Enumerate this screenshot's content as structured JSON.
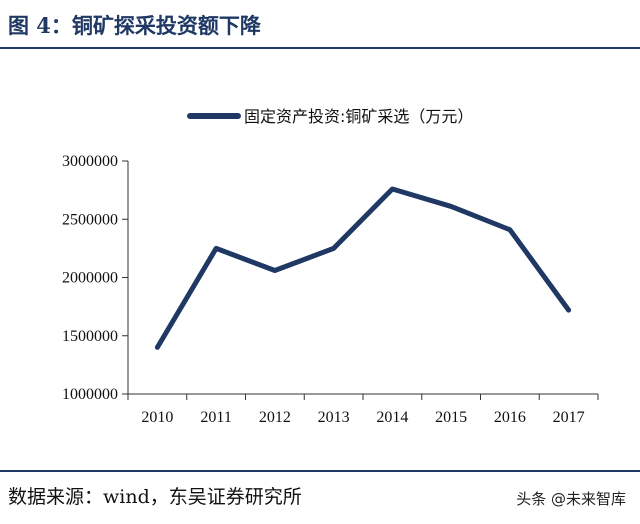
{
  "header": {
    "title": "图 4：铜矿探采投资额下降"
  },
  "footer": {
    "source": "数据来源：wind，东吴证券研究所",
    "watermark": "头条 @未来智库"
  },
  "chart_data": {
    "type": "line",
    "title": "",
    "xlabel": "",
    "ylabel": "",
    "categories": [
      "2010",
      "2011",
      "2012",
      "2013",
      "2014",
      "2015",
      "2016",
      "2017"
    ],
    "series": [
      {
        "name": "固定资产投资:铜矿采选（万元）",
        "values": [
          1400000,
          2250000,
          2060000,
          2250000,
          2760000,
          2610000,
          2410000,
          1720000
        ],
        "color": "#1f3864"
      }
    ],
    "yticks": [
      "1000000",
      "1500000",
      "2000000",
      "2500000",
      "3000000"
    ],
    "ylim": [
      1000000,
      3000000
    ],
    "grid": false,
    "legend": "top-center"
  }
}
